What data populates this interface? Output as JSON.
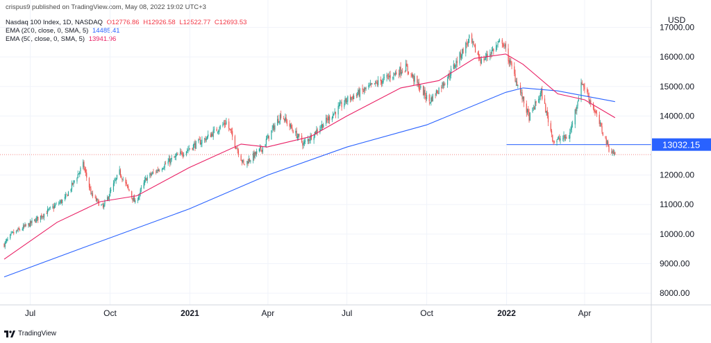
{
  "header": {
    "published": "crispus9 published on TradingView.com, May 08, 2022 19:02 UTC+3",
    "symbol": "Nasdaq 100 Index, 1D, NASDAQ",
    "ohlc": {
      "o": "O12776.86",
      "h": "H12926.58",
      "l": "L12522.77",
      "c": "C12693.53"
    },
    "ema200_label": "EMA (200, close, 0, SMA, 5)",
    "ema200_value": "14485.41",
    "ema50_label": "EMA (50, close, 0, SMA, 5)",
    "ema50_value": "13941.96"
  },
  "currency": "USD",
  "brand": "TradingView",
  "colors": {
    "up": "#26a69a",
    "down": "#ef5350",
    "ema200": "#2962ff",
    "ema50": "#e91e63",
    "hline": "#2962ff",
    "last_price_line": "#ef5350"
  },
  "chart_data": {
    "type": "candlestick",
    "x_axis_labels": [
      "Jul",
      "Oct",
      "2021",
      "Apr",
      "Jul",
      "Oct",
      "2022",
      "Apr"
    ],
    "y_ticks": [
      "8000.00",
      "9000.00",
      "10000.00",
      "11000.00",
      "12000.00",
      "13000.00",
      "14000.00",
      "15000.00",
      "16000.00",
      "17000.00"
    ],
    "ylim": [
      7650,
      17600
    ],
    "price_series": [
      [
        "2020-06-01",
        9650
      ],
      [
        "2020-06-10",
        10000
      ],
      [
        "2020-07-01",
        10350
      ],
      [
        "2020-07-20",
        10750
      ],
      [
        "2020-08-10",
        11200
      ],
      [
        "2020-08-31",
        12350
      ],
      [
        "2020-09-10",
        11300
      ],
      [
        "2020-09-23",
        10900
      ],
      [
        "2020-10-12",
        12100
      ],
      [
        "2020-10-30",
        11050
      ],
      [
        "2020-11-12",
        11900
      ],
      [
        "2020-12-10",
        12500
      ],
      [
        "2020-12-31",
        12900
      ],
      [
        "2021-01-20",
        13250
      ],
      [
        "2021-02-12",
        13800
      ],
      [
        "2021-03-04",
        12350
      ],
      [
        "2021-03-25",
        12900
      ],
      [
        "2021-04-16",
        14050
      ],
      [
        "2021-05-12",
        13050
      ],
      [
        "2021-06-01",
        13650
      ],
      [
        "2021-07-01",
        14550
      ],
      [
        "2021-08-01",
        15050
      ],
      [
        "2021-09-07",
        15650
      ],
      [
        "2021-10-04",
        14500
      ],
      [
        "2021-10-25",
        15300
      ],
      [
        "2021-11-19",
        16600
      ],
      [
        "2021-12-03",
        15850
      ],
      [
        "2021-12-27",
        16550
      ],
      [
        "2022-01-27",
        13950
      ],
      [
        "2022-02-10",
        14800
      ],
      [
        "2022-02-24",
        13150
      ],
      [
        "2022-03-14",
        13300
      ],
      [
        "2022-03-29",
        15150
      ],
      [
        "2022-04-12",
        14200
      ],
      [
        "2022-04-29",
        12900
      ],
      [
        "2022-05-06",
        12694
      ]
    ],
    "ema200_series": [
      [
        "2020-06-01",
        8550
      ],
      [
        "2020-09-01",
        9550
      ],
      [
        "2020-12-31",
        10850
      ],
      [
        "2021-04-01",
        12000
      ],
      [
        "2021-07-01",
        12950
      ],
      [
        "2021-10-01",
        13700
      ],
      [
        "2021-12-31",
        14800
      ],
      [
        "2022-01-20",
        14950
      ],
      [
        "2022-03-01",
        14850
      ],
      [
        "2022-05-06",
        14485
      ]
    ],
    "ema50_series": [
      [
        "2020-06-01",
        9150
      ],
      [
        "2020-08-01",
        10400
      ],
      [
        "2020-09-20",
        11100
      ],
      [
        "2020-11-01",
        11300
      ],
      [
        "2020-12-31",
        12250
      ],
      [
        "2021-03-01",
        13050
      ],
      [
        "2021-03-31",
        12950
      ],
      [
        "2021-05-20",
        13300
      ],
      [
        "2021-07-01",
        14000
      ],
      [
        "2021-09-01",
        14950
      ],
      [
        "2021-10-15",
        15200
      ],
      [
        "2021-11-25",
        15950
      ],
      [
        "2021-12-31",
        16100
      ],
      [
        "2022-01-20",
        15750
      ],
      [
        "2022-03-01",
        14750
      ],
      [
        "2022-04-01",
        14550
      ],
      [
        "2022-05-06",
        13942
      ]
    ],
    "horizontal_line": {
      "value": 13032.15,
      "label": "13032.15",
      "start": "2022-01-01"
    },
    "last_price": 12693.53
  }
}
